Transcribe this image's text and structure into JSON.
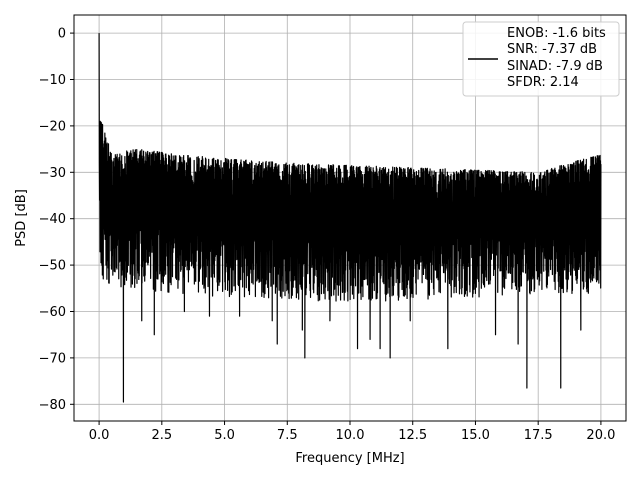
{
  "chart_data": {
    "type": "line",
    "xlabel": "Frequency [MHz]",
    "ylabel": "PSD [dB]",
    "xlim": [
      -1.0,
      21.0
    ],
    "ylim": [
      -83.6,
      3.9
    ],
    "xticks": [
      0.0,
      2.5,
      5.0,
      7.5,
      10.0,
      12.5,
      15.0,
      17.5,
      20.0
    ],
    "xtick_labels": [
      "0.0",
      "2.5",
      "5.0",
      "7.5",
      "10.0",
      "12.5",
      "15.0",
      "17.5",
      "20.0"
    ],
    "yticks": [
      0,
      -10,
      -20,
      -30,
      -40,
      -50,
      -60,
      -70,
      -80
    ],
    "ytick_labels": [
      "0",
      "−10",
      "−20",
      "−30",
      "−40",
      "−50",
      "−60",
      "−70",
      "−80"
    ],
    "grid": true,
    "legend_position": "top-right",
    "legend_lines": [
      "ENOB: -1.6 bits",
      "SNR: -7.37 dB",
      "SINAD: -7.9 dB",
      "SFDR: 2.14"
    ],
    "series": [
      {
        "color": "#000000",
        "x_range": [
          0.0,
          20.0
        ],
        "fundamental": {
          "x": 0.0,
          "y": 0.0
        },
        "noise_upper_envelope": [
          [
            0.05,
            -17
          ],
          [
            0.15,
            -20
          ],
          [
            0.5,
            -26
          ],
          [
            1.5,
            -25
          ],
          [
            3,
            -26
          ],
          [
            5,
            -27
          ],
          [
            7.5,
            -28
          ],
          [
            10,
            -28.5
          ],
          [
            12.5,
            -29
          ],
          [
            15,
            -29.5
          ],
          [
            17.5,
            -30
          ],
          [
            20,
            -26
          ]
        ],
        "noise_lower_envelope": [
          [
            0.05,
            -55
          ],
          [
            1,
            -55
          ],
          [
            5,
            -57
          ],
          [
            10,
            -58
          ],
          [
            15,
            -57
          ],
          [
            20,
            -56
          ]
        ],
        "deep_dips": [
          [
            0.97,
            -79.5
          ],
          [
            1.7,
            -62
          ],
          [
            2.2,
            -65
          ],
          [
            3.4,
            -60
          ],
          [
            4.4,
            -61
          ],
          [
            5.6,
            -61
          ],
          [
            6.9,
            -62
          ],
          [
            7.1,
            -67
          ],
          [
            8.1,
            -64
          ],
          [
            8.2,
            -70
          ],
          [
            9.2,
            -62
          ],
          [
            10.3,
            -68
          ],
          [
            10.8,
            -66
          ],
          [
            11.2,
            -68
          ],
          [
            11.6,
            -70
          ],
          [
            12.4,
            -62
          ],
          [
            13.9,
            -68
          ],
          [
            15.8,
            -65
          ],
          [
            16.7,
            -67
          ],
          [
            17.05,
            -76.5
          ],
          [
            18.4,
            -76.5
          ],
          [
            19.2,
            -64
          ]
        ]
      }
    ]
  }
}
